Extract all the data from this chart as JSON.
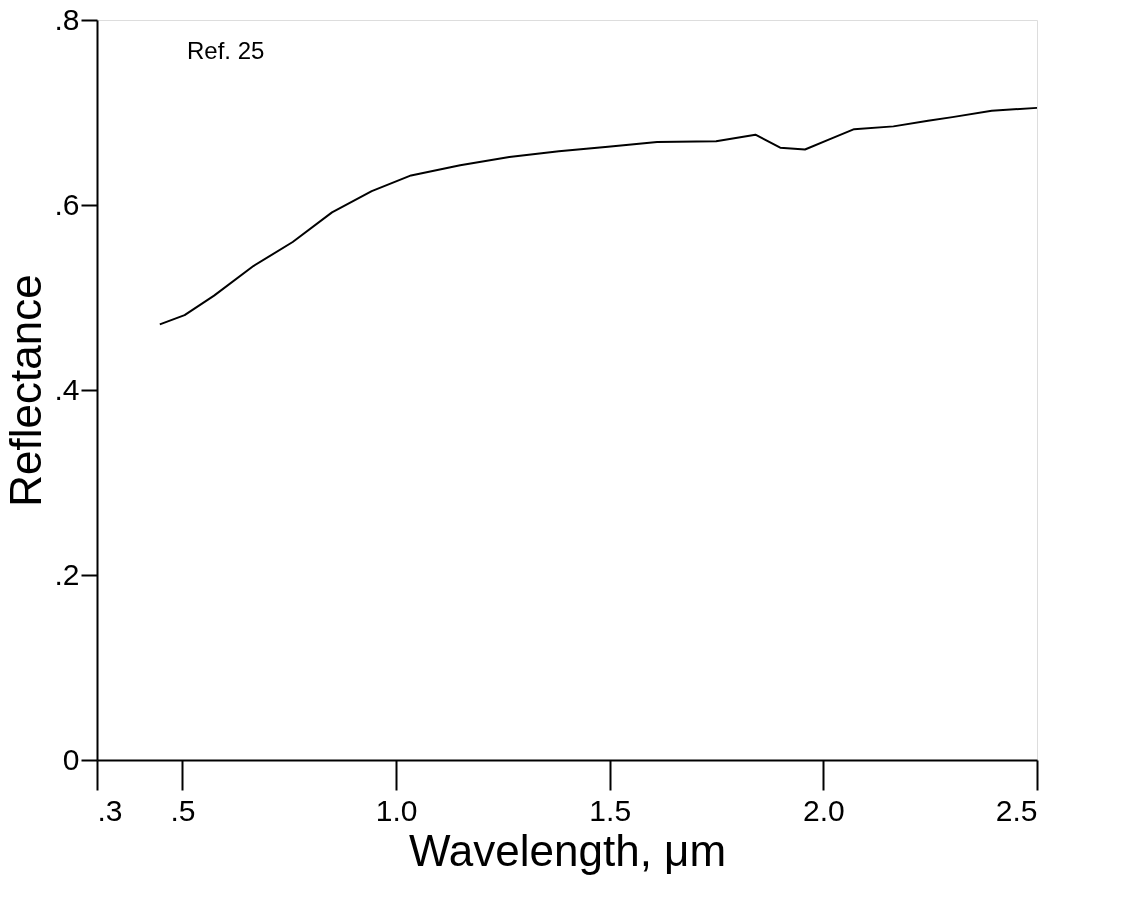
{
  "chart_data": {
    "type": "line",
    "xlabel": "Wavelength, μm",
    "ylabel": "Reflectance",
    "annotations": [
      "Ref. 25"
    ],
    "x": [
      0.447,
      0.505,
      0.574,
      0.666,
      0.758,
      0.85,
      0.943,
      1.035,
      1.15,
      1.265,
      1.381,
      1.496,
      1.611,
      1.749,
      1.841,
      1.899,
      1.957,
      2.014,
      2.072,
      2.164,
      2.245,
      2.302,
      2.394,
      2.5
    ],
    "series": [
      {
        "color": "#000000",
        "values": [
          0.471,
          0.481,
          0.502,
          0.534,
          0.56,
          0.592,
          0.615,
          0.632,
          0.643,
          0.652,
          0.658,
          0.663,
          0.668,
          0.669,
          0.676,
          0.662,
          0.66,
          0.671,
          0.682,
          0.685,
          0.691,
          0.695,
          0.702,
          0.705
        ]
      }
    ],
    "xlim": [
      0.3,
      2.5
    ],
    "ylim": [
      0,
      0.8
    ],
    "xticks": [
      {
        "value": 0.3,
        "label": ".3"
      },
      {
        "value": 0.5,
        "label": ".5"
      },
      {
        "value": 1.0,
        "label": "1.0"
      },
      {
        "value": 1.5,
        "label": "1.5"
      },
      {
        "value": 2.0,
        "label": "2.0"
      },
      {
        "value": 2.5,
        "label": "2.5"
      }
    ],
    "yticks": [
      {
        "value": 0,
        "label": "0"
      },
      {
        "value": 0.2,
        "label": ".2"
      },
      {
        "value": 0.4,
        "label": ".4"
      },
      {
        "value": 0.6,
        "label": ".6"
      },
      {
        "value": 0.8,
        "label": ".8"
      }
    ],
    "grid": false,
    "marker": "none",
    "line_style": "solid"
  }
}
